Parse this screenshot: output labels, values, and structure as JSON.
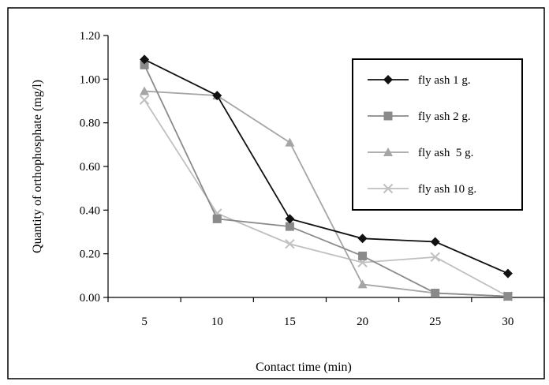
{
  "chart_data": {
    "type": "line",
    "title": "",
    "xlabel": "Contact time (min)",
    "ylabel": "Quantity of orthophosphate (mg/l)",
    "categories": [
      "5",
      "10",
      "15",
      "20",
      "25",
      "30"
    ],
    "x": [
      5,
      10,
      15,
      20,
      25,
      30
    ],
    "ylim": [
      0,
      1.2
    ],
    "yticks": [
      "0.00",
      "0.20",
      "0.40",
      "0.60",
      "0.80",
      "1.00",
      "1.20"
    ],
    "grid": false,
    "legend_position": "top-right",
    "series": [
      {
        "name": "fly ash 1 g.",
        "marker": "diamond",
        "color": "#111111",
        "values": [
          1.09,
          0.925,
          0.36,
          0.27,
          0.255,
          0.11
        ]
      },
      {
        "name": "fly ash 2 g.",
        "marker": "square",
        "color": "#8a8a8a",
        "values": [
          1.065,
          0.36,
          0.325,
          0.19,
          0.02,
          0.005
        ]
      },
      {
        "name": "fly ash  5 g.",
        "marker": "triangle",
        "color": "#a5a5a5",
        "values": [
          0.945,
          0.925,
          0.71,
          0.06,
          0.02,
          0.005
        ]
      },
      {
        "name": "fly ash 10 g.",
        "marker": "x",
        "color": "#c0c0c0",
        "values": [
          0.905,
          0.385,
          0.245,
          0.16,
          0.185,
          0.005
        ]
      }
    ]
  }
}
